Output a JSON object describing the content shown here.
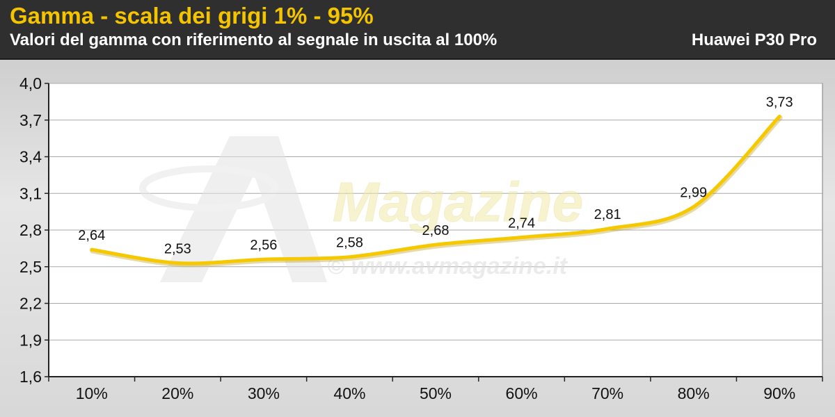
{
  "header": {
    "title": "Gamma - scala dei grigi 1% - 95%",
    "subtitle": "Valori del gamma con riferimento al segnale in uscita al 100%",
    "device": "Huawei P30 Pro"
  },
  "watermark": {
    "brand": "Magazine",
    "url": "© www.avmagazine.it"
  },
  "colors": {
    "title": "#f5c400",
    "line": "#f5c800",
    "header_bg": "#2f2f2f",
    "plot_bg": "#ffffff"
  },
  "chart_data": {
    "type": "line",
    "title": "Gamma - scala dei grigi 1% - 95%",
    "subtitle": "Valori del gamma con riferimento al segnale in uscita al 100%",
    "categories": [
      "10%",
      "20%",
      "30%",
      "40%",
      "50%",
      "60%",
      "70%",
      "80%",
      "90%"
    ],
    "values": [
      2.64,
      2.53,
      2.56,
      2.58,
      2.68,
      2.74,
      2.81,
      2.99,
      3.73
    ],
    "data_labels": [
      "2,64",
      "2,53",
      "2,56",
      "2,58",
      "2,68",
      "2,74",
      "2,81",
      "2,99",
      "3,73"
    ],
    "y_ticks": [
      "1,6",
      "1,9",
      "2,2",
      "2,5",
      "2,8",
      "3,1",
      "3,4",
      "3,7",
      "4,0"
    ],
    "ylim": [
      1.6,
      4.0
    ],
    "grid": true,
    "legend": "none"
  }
}
